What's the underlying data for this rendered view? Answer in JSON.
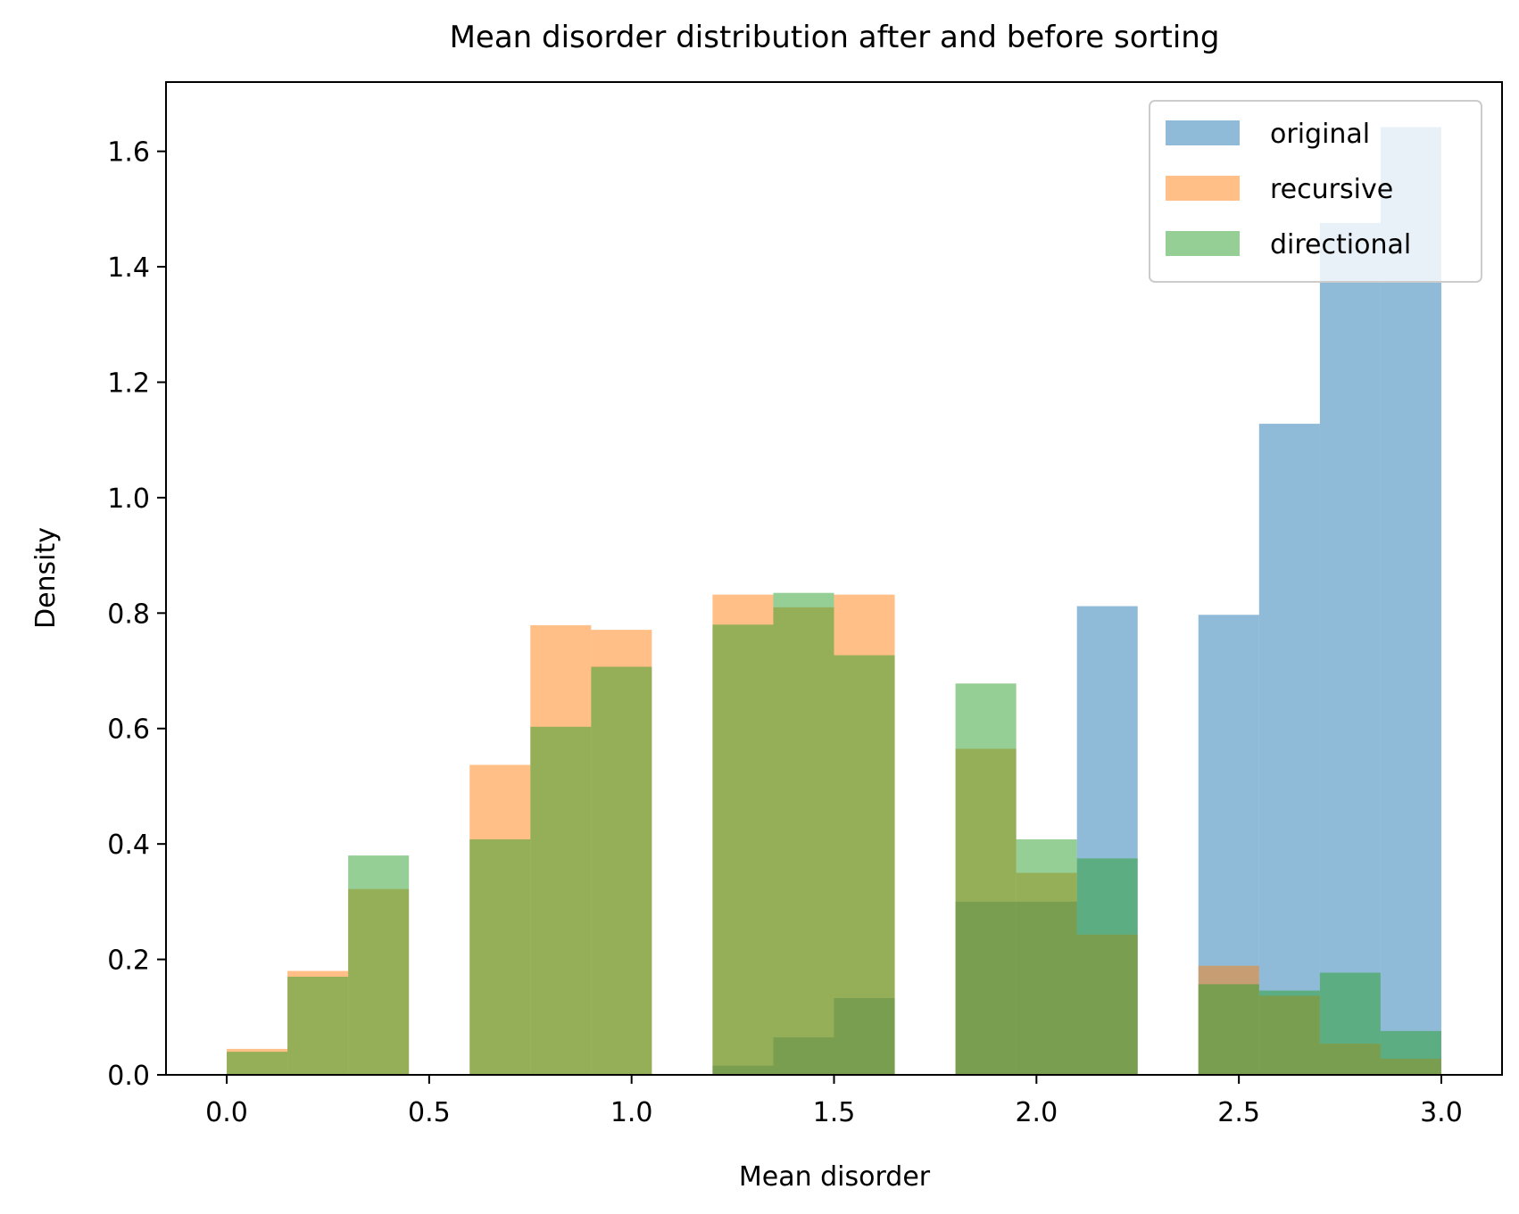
{
  "chart_data": {
    "type": "bar",
    "title": "Mean disorder distribution after and before sorting",
    "xlabel": "Mean disorder",
    "ylabel": "Density",
    "xlim": [
      -0.15,
      3.15
    ],
    "ylim": [
      0,
      1.72
    ],
    "xticks": [
      0.0,
      0.5,
      1.0,
      1.5,
      2.0,
      2.5,
      3.0
    ],
    "xtick_labels": [
      "0.0",
      "0.5",
      "1.0",
      "1.5",
      "2.0",
      "2.5",
      "3.0"
    ],
    "yticks": [
      0.0,
      0.2,
      0.4,
      0.6,
      0.8,
      1.0,
      1.2,
      1.4,
      1.6
    ],
    "ytick_labels": [
      "0.0",
      "0.2",
      "0.4",
      "0.6",
      "0.8",
      "1.0",
      "1.2",
      "1.4",
      "1.6"
    ],
    "bin_edges": [
      0.0,
      0.15,
      0.3,
      0.45,
      0.6,
      0.75,
      0.9,
      1.05,
      1.2,
      1.35,
      1.5,
      1.65,
      1.8,
      1.95,
      2.1,
      2.25,
      2.4,
      2.55,
      2.7,
      2.85,
      3.0
    ],
    "legend": {
      "position": "top-right"
    },
    "grid": false,
    "opacity": 0.5,
    "series": [
      {
        "name": "original",
        "color": "#1f77b4",
        "values": [
          0,
          0,
          0,
          0,
          0,
          0,
          0,
          0,
          0.016,
          0.065,
          0.133,
          0,
          0.3,
          0.3,
          0.812,
          0,
          0.797,
          1.128,
          1.476,
          1.642
        ]
      },
      {
        "name": "recursive",
        "color": "#ff7f0e",
        "values": [
          0.045,
          0.18,
          0.322,
          0,
          0.537,
          0.779,
          0.771,
          0,
          0.832,
          0.81,
          0.832,
          0,
          0.565,
          0.35,
          0.243,
          0,
          0.189,
          0.137,
          0.054,
          0.028
        ]
      },
      {
        "name": "directional",
        "color": "#2ca02c",
        "values": [
          0.04,
          0.17,
          0.38,
          0,
          0.408,
          0.603,
          0.707,
          0,
          0.78,
          0.835,
          0.727,
          0,
          0.678,
          0.408,
          0.375,
          0,
          0.157,
          0.146,
          0.177,
          0.076
        ]
      }
    ]
  }
}
